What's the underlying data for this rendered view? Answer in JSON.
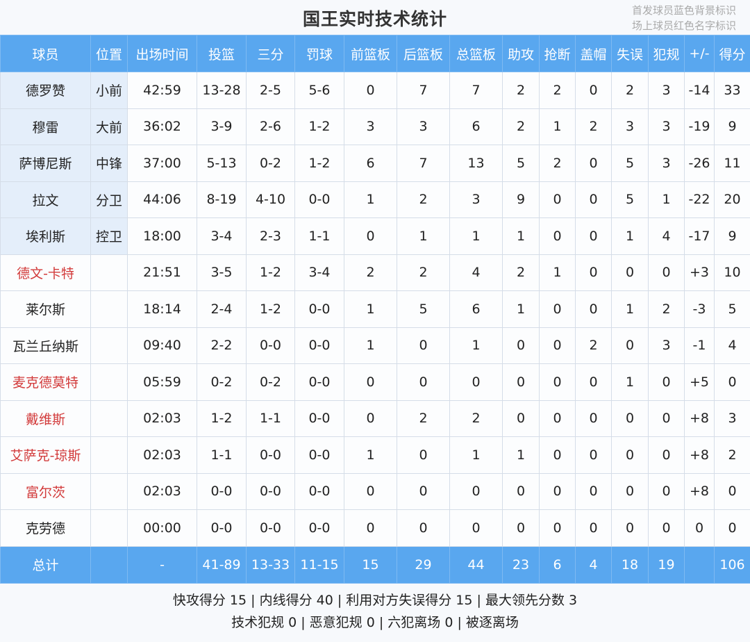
{
  "title": "国王实时技术统计",
  "notes": [
    "首发球员蓝色背景标识",
    "场上球员红色名字标识"
  ],
  "colors": {
    "header_bg": "#59a7ef",
    "starter_bg": "#e4eefa",
    "on_court_name": "#d23a3a"
  },
  "columns": [
    "球员",
    "位置",
    "出场时间",
    "投篮",
    "三分",
    "罚球",
    "前篮板",
    "后篮板",
    "总篮板",
    "助攻",
    "抢断",
    "盖帽",
    "失误",
    "犯规",
    "+/-",
    "得分"
  ],
  "rows": [
    {
      "starter": true,
      "on_court": false,
      "cells": [
        "德罗赞",
        "小前",
        "42:59",
        "13-28",
        "2-5",
        "5-6",
        "0",
        "7",
        "7",
        "2",
        "2",
        "0",
        "2",
        "3",
        "-14",
        "33"
      ]
    },
    {
      "starter": true,
      "on_court": false,
      "cells": [
        "穆雷",
        "大前",
        "36:02",
        "3-9",
        "2-6",
        "1-2",
        "3",
        "3",
        "6",
        "2",
        "1",
        "2",
        "3",
        "3",
        "-19",
        "9"
      ]
    },
    {
      "starter": true,
      "on_court": false,
      "cells": [
        "萨博尼斯",
        "中锋",
        "37:00",
        "5-13",
        "0-2",
        "1-2",
        "6",
        "7",
        "13",
        "5",
        "2",
        "0",
        "5",
        "3",
        "-26",
        "11"
      ]
    },
    {
      "starter": true,
      "on_court": false,
      "cells": [
        "拉文",
        "分卫",
        "44:06",
        "8-19",
        "4-10",
        "0-0",
        "1",
        "2",
        "3",
        "9",
        "0",
        "0",
        "5",
        "1",
        "-22",
        "20"
      ]
    },
    {
      "starter": true,
      "on_court": false,
      "cells": [
        "埃利斯",
        "控卫",
        "18:00",
        "3-4",
        "2-3",
        "1-1",
        "0",
        "1",
        "1",
        "1",
        "0",
        "0",
        "1",
        "4",
        "-17",
        "9"
      ]
    },
    {
      "starter": false,
      "on_court": true,
      "cells": [
        "德文-卡特",
        "",
        "21:51",
        "3-5",
        "1-2",
        "3-4",
        "2",
        "2",
        "4",
        "2",
        "1",
        "0",
        "0",
        "0",
        "+3",
        "10"
      ]
    },
    {
      "starter": false,
      "on_court": false,
      "cells": [
        "莱尔斯",
        "",
        "18:14",
        "2-4",
        "1-2",
        "0-0",
        "1",
        "5",
        "6",
        "1",
        "0",
        "0",
        "1",
        "2",
        "-3",
        "5"
      ]
    },
    {
      "starter": false,
      "on_court": false,
      "cells": [
        "瓦兰丘纳斯",
        "",
        "09:40",
        "2-2",
        "0-0",
        "0-0",
        "1",
        "0",
        "1",
        "0",
        "0",
        "2",
        "0",
        "3",
        "-1",
        "4"
      ]
    },
    {
      "starter": false,
      "on_court": true,
      "cells": [
        "麦克德莫特",
        "",
        "05:59",
        "0-2",
        "0-2",
        "0-0",
        "0",
        "0",
        "0",
        "0",
        "0",
        "0",
        "1",
        "0",
        "+5",
        "0"
      ]
    },
    {
      "starter": false,
      "on_court": true,
      "cells": [
        "戴维斯",
        "",
        "02:03",
        "1-2",
        "1-1",
        "0-0",
        "0",
        "2",
        "2",
        "0",
        "0",
        "0",
        "0",
        "0",
        "+8",
        "3"
      ]
    },
    {
      "starter": false,
      "on_court": true,
      "cells": [
        "艾萨克-琼斯",
        "",
        "02:03",
        "1-1",
        "0-0",
        "0-0",
        "1",
        "0",
        "1",
        "1",
        "0",
        "0",
        "0",
        "0",
        "+8",
        "2"
      ]
    },
    {
      "starter": false,
      "on_court": true,
      "cells": [
        "富尔茨",
        "",
        "02:03",
        "0-0",
        "0-0",
        "0-0",
        "0",
        "0",
        "0",
        "0",
        "0",
        "0",
        "0",
        "0",
        "+8",
        "0"
      ]
    },
    {
      "starter": false,
      "on_court": false,
      "cells": [
        "克劳德",
        "",
        "00:00",
        "0-0",
        "0-0",
        "0-0",
        "0",
        "0",
        "0",
        "0",
        "0",
        "0",
        "0",
        "0",
        "0",
        "0"
      ]
    }
  ],
  "total": [
    "总计",
    "",
    "-",
    "41-89",
    "13-33",
    "11-15",
    "15",
    "29",
    "44",
    "23",
    "6",
    "4",
    "18",
    "19",
    "",
    "106"
  ],
  "footer": [
    "快攻得分 15 | 内线得分 40 | 利用对方失误得分 15 | 最大领先分数 3",
    "技术犯规 0 | 恶意犯规 0 | 六犯离场 0 | 被逐离场"
  ]
}
